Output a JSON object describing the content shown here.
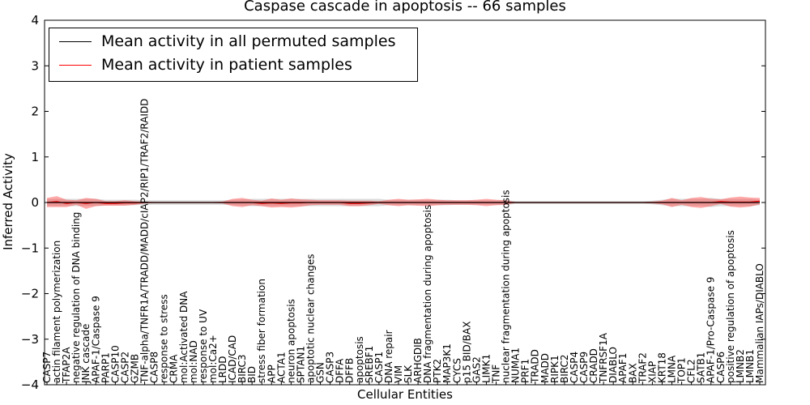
{
  "chart_data": {
    "type": "line",
    "title": "Caspase cascade in apoptosis -- 66 samples",
    "xlabel": "Cellular Entities",
    "ylabel": "Inferred Activity",
    "ylim": [
      -4,
      4
    ],
    "yticks": [
      -4,
      -3,
      -2,
      -1,
      0,
      1,
      2,
      3,
      4
    ],
    "ytick_labels": [
      "−4",
      "−3",
      "−2",
      "−1",
      "0",
      "1",
      "2",
      "3",
      "4"
    ],
    "grid": false,
    "legend_position": "top-left",
    "categories": [
      "CASP7",
      "actin filament polymerization",
      "TFAP2A",
      "negative regulation of DNA binding",
      "JNK cascade",
      "APAF-1/Caspase 9",
      "PARP1",
      "CASP10",
      "CASP2",
      "GZMB",
      "TNF-alpha/TNFR1A/TRADD/MADD/cIAP2/RIP1/TRAF2/RAIDD",
      "CASP8",
      "response to stress",
      "CRMA",
      "mol:Activated DNA",
      "mol:NAD",
      "response to UV",
      "mol:Ca2+",
      "LRDD",
      "ICAD/CAD",
      "BIRC3",
      "BID",
      "stress fiber formation",
      "APP",
      "ACTA1",
      "neuron apoptosis",
      "SPTAN1",
      "apoptotic nuclear changes",
      "GSN",
      "CASP3",
      "DFFA",
      "DFFB",
      "apoptosis",
      "SREBF1",
      "CASP1",
      "DNA repair",
      "VIM",
      "SLK",
      "ARHGDIB",
      "DNA fragmentation during apoptosis",
      "PTK2",
      "MAP3K1",
      "CYCS",
      "p15 BID/BAX",
      "GAS2",
      "LIMK1",
      "TNF",
      "nuclear fragmentation during apoptosis",
      "NUMA1",
      "PRF1",
      "TRADD",
      "MADD",
      "RIPK1",
      "BIRC2",
      "CASP4",
      "CASP9",
      "CRADD",
      "TNFRSF1A",
      "DIABLO",
      "APAF1",
      "BAX",
      "TRAF2",
      "XIAP",
      "KRT18",
      "LMNA",
      "TOP1",
      "CFL2",
      "SATB1",
      "APAF-1/Pro-Caspase 9",
      "CASP6",
      "positive regulation of apoptosis",
      "LMNB2",
      "LMNB1",
      "Mammalian IAPs/DIABLO"
    ],
    "series": [
      {
        "name": "Mean activity in all permuted samples",
        "color": "#000000",
        "values": [
          0.0,
          0.0,
          0.0,
          0.0,
          0.0,
          0.0,
          0.0,
          0.0,
          0.0,
          0.0,
          0.0,
          0.0,
          0.0,
          0.0,
          0.0,
          0.0,
          0.0,
          0.0,
          0.0,
          0.0,
          0.0,
          0.0,
          0.0,
          0.0,
          0.0,
          0.0,
          0.0,
          0.0,
          0.0,
          0.0,
          0.0,
          0.0,
          0.0,
          0.0,
          0.0,
          0.0,
          0.0,
          0.0,
          0.0,
          0.0,
          0.0,
          0.0,
          0.0,
          0.0,
          0.0,
          0.0,
          0.0,
          0.0,
          0.0,
          0.0,
          0.0,
          0.0,
          0.0,
          0.0,
          0.0,
          0.0,
          0.0,
          0.0,
          0.0,
          0.0,
          0.0,
          0.0,
          0.0,
          0.0,
          0.0,
          0.0,
          0.0,
          0.0,
          0.0,
          0.0,
          0.0,
          0.0,
          0.0,
          0.0
        ],
        "band": [
          0.08,
          0.08,
          0.08,
          0.08,
          0.08,
          0.08,
          0.06,
          0.06,
          0.06,
          0.06,
          0.05,
          0.05,
          0.05,
          0.05,
          0.05,
          0.05,
          0.05,
          0.05,
          0.05,
          0.06,
          0.07,
          0.08,
          0.08,
          0.08,
          0.08,
          0.08,
          0.08,
          0.08,
          0.08,
          0.08,
          0.08,
          0.08,
          0.08,
          0.08,
          0.08,
          0.06,
          0.06,
          0.06,
          0.06,
          0.06,
          0.06,
          0.06,
          0.05,
          0.05,
          0.05,
          0.05,
          0.05,
          0.05,
          0.03,
          0.03,
          0.03,
          0.03,
          0.03,
          0.03,
          0.03,
          0.03,
          0.03,
          0.03,
          0.03,
          0.03,
          0.03,
          0.03,
          0.04,
          0.06,
          0.08,
          0.08,
          0.08,
          0.08,
          0.1,
          0.08,
          0.08,
          0.08,
          0.08,
          0.06
        ]
      },
      {
        "name": "Mean activity in patient samples",
        "color": "#ff0000",
        "values": [
          0.0,
          0.02,
          -0.02,
          0.0,
          -0.02,
          0.0,
          -0.02,
          -0.02,
          -0.01,
          -0.01,
          0.0,
          0.0,
          0.0,
          0.0,
          0.0,
          0.0,
          0.0,
          0.0,
          0.0,
          0.0,
          0.0,
          0.0,
          -0.02,
          -0.01,
          -0.02,
          -0.01,
          -0.01,
          0.0,
          0.0,
          0.0,
          0.0,
          -0.02,
          -0.02,
          -0.01,
          0.0,
          0.0,
          0.0,
          0.0,
          0.0,
          0.0,
          0.0,
          0.0,
          0.0,
          0.0,
          0.0,
          0.0,
          0.0,
          0.0,
          0.0,
          0.0,
          0.0,
          0.0,
          0.0,
          0.0,
          0.0,
          0.0,
          0.0,
          0.0,
          0.0,
          0.0,
          0.0,
          0.0,
          0.0,
          0.0,
          0.0,
          0.0,
          0.0,
          0.0,
          0.0,
          0.02,
          0.01,
          0.01,
          0.01,
          0.03
        ],
        "band": [
          0.1,
          0.12,
          0.08,
          0.05,
          0.12,
          0.08,
          0.05,
          0.05,
          0.06,
          0.04,
          0.02,
          0.01,
          0.01,
          0.01,
          0.01,
          0.01,
          0.01,
          0.01,
          0.02,
          0.08,
          0.1,
          0.06,
          0.06,
          0.1,
          0.08,
          0.1,
          0.08,
          0.06,
          0.05,
          0.05,
          0.05,
          0.06,
          0.06,
          0.05,
          0.03,
          0.06,
          0.08,
          0.06,
          0.07,
          0.08,
          0.06,
          0.05,
          0.05,
          0.05,
          0.06,
          0.08,
          0.06,
          0.05,
          0.01,
          0.01,
          0.01,
          0.01,
          0.01,
          0.01,
          0.01,
          0.01,
          0.01,
          0.01,
          0.01,
          0.01,
          0.01,
          0.01,
          0.02,
          0.04,
          0.1,
          0.05,
          0.1,
          0.12,
          0.08,
          0.05,
          0.1,
          0.12,
          0.1,
          0.07
        ]
      }
    ]
  }
}
